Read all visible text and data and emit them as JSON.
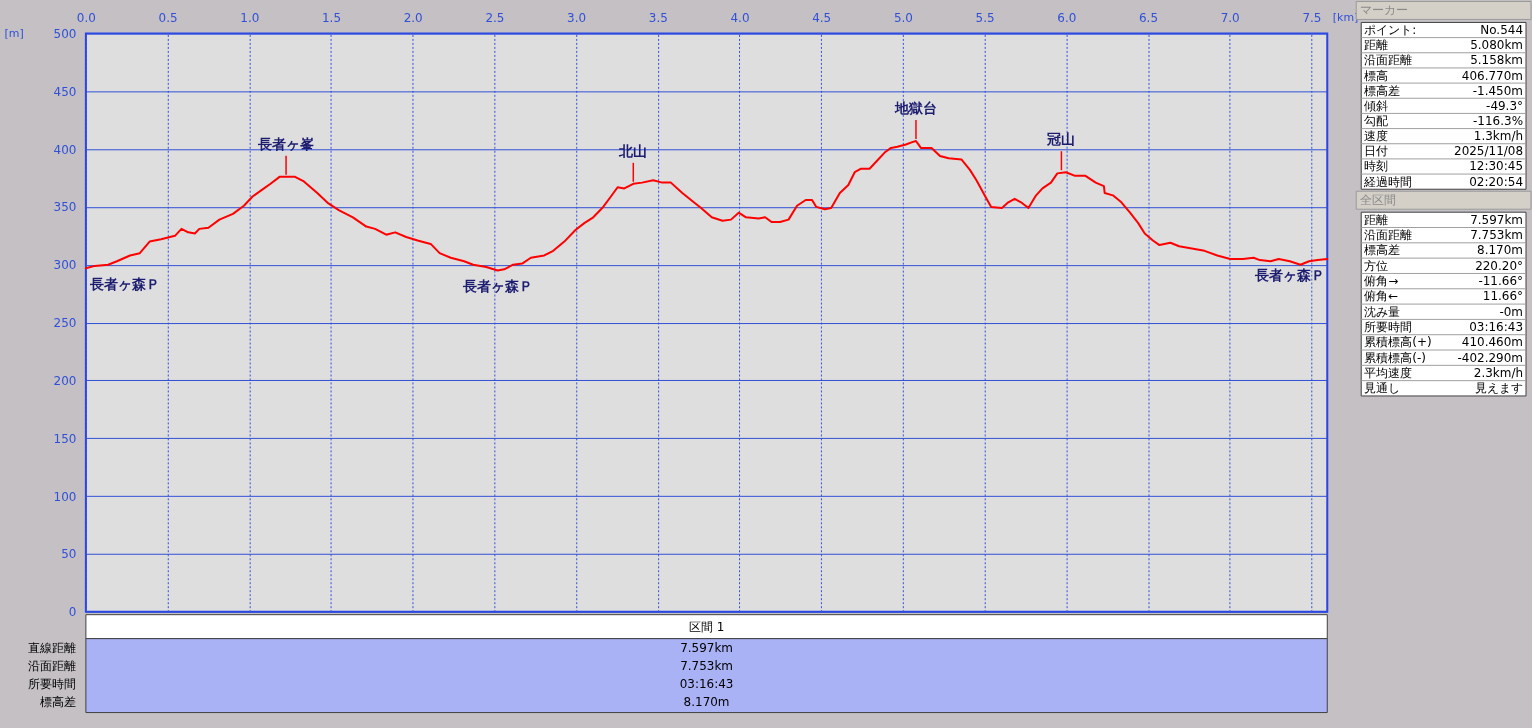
{
  "chart_data": [
    {
      "type": "line",
      "xlabel": "[km]",
      "ylabel": "[m]",
      "color": "#ff0000",
      "x": [
        0,
        0.054,
        0.136,
        0.19,
        0.27,
        0.33,
        0.39,
        0.46,
        0.545,
        0.585,
        0.626,
        0.667,
        0.694,
        0.75,
        0.817,
        0.9,
        0.967,
        1.02,
        1.09,
        1.13,
        1.185,
        1.225,
        1.28,
        1.334,
        1.416,
        1.484,
        1.55,
        1.634,
        1.716,
        1.77,
        1.838,
        1.893,
        1.96,
        2.03,
        2.11,
        2.165,
        2.233,
        2.315,
        2.37,
        2.45,
        2.52,
        2.56,
        2.614,
        2.67,
        2.723,
        2.805,
        2.86,
        2.928,
        2.996,
        3.05,
        3.105,
        3.16,
        3.213,
        3.254,
        3.295,
        3.35,
        3.404,
        3.472,
        3.527,
        3.58,
        3.65,
        3.73,
        3.765,
        3.83,
        3.896,
        3.948,
        3.995,
        4.04,
        4.117,
        4.157,
        4.196,
        4.248,
        4.3,
        4.352,
        4.405,
        4.444,
        4.47,
        4.522,
        4.561,
        4.614,
        4.666,
        4.705,
        4.744,
        4.796,
        4.836,
        4.888,
        4.927,
        4.966,
        5.018,
        5.057,
        5.08,
        5.11,
        5.175,
        5.227,
        5.28,
        5.358,
        5.41,
        5.45,
        5.5,
        5.54,
        5.606,
        5.645,
        5.684,
        5.723,
        5.768,
        5.815,
        5.854,
        5.906,
        5.945,
        5.997,
        6.05,
        6.115,
        6.18,
        6.23,
        6.235,
        6.285,
        6.337,
        6.39,
        6.44,
        6.48,
        6.53,
        6.57,
        6.637,
        6.69,
        6.768,
        6.846,
        6.924,
        7.003,
        7.08,
        7.146,
        7.185,
        7.25,
        7.3,
        7.368,
        7.433,
        7.486,
        7.538,
        7.597
      ],
      "values": [
        297,
        299,
        300,
        303,
        308,
        310,
        320,
        322,
        325,
        331,
        328,
        327,
        331,
        332,
        339,
        344,
        351,
        359,
        366,
        370,
        376,
        376,
        376,
        372,
        362,
        353,
        347,
        341,
        333,
        331,
        326,
        328,
        324,
        321,
        318,
        310,
        306,
        303,
        300,
        298,
        295,
        296,
        300,
        301,
        306,
        308,
        312,
        320,
        330,
        336,
        341,
        349,
        359,
        367,
        366,
        370,
        371,
        373,
        371,
        371,
        362,
        353,
        349,
        341,
        338,
        339,
        345,
        341,
        340,
        341,
        337,
        337,
        339,
        351,
        356,
        356,
        350,
        348,
        349,
        362,
        369,
        380,
        383,
        383,
        389,
        397,
        401,
        402,
        404,
        406,
        407,
        401,
        401,
        394,
        392,
        391,
        382,
        373,
        360,
        350,
        349,
        354,
        357,
        354,
        349,
        360,
        366,
        371,
        379,
        380,
        377,
        377,
        371,
        368,
        362,
        360,
        354,
        345,
        336,
        327,
        321,
        317,
        319,
        316,
        314,
        312,
        308,
        305,
        305,
        306,
        304,
        303,
        305,
        303,
        300,
        303,
        304,
        305
      ],
      "xlim": [
        0,
        7.597
      ],
      "ylim": [
        0,
        500
      ],
      "xticks": [
        {
          "value": 0,
          "label": "0.0"
        },
        0.5,
        {
          "value": 1,
          "label": "1.0"
        },
        1.5,
        {
          "value": 2,
          "label": "2.0"
        },
        2.5,
        {
          "value": 3,
          "label": "3.0"
        },
        3.5,
        {
          "value": 4,
          "label": "4.0"
        },
        4.5,
        {
          "value": 5,
          "label": "5.0"
        },
        5.5,
        {
          "value": 6,
          "label": "6.0"
        },
        6.5,
        {
          "value": 7,
          "label": "7.0"
        },
        7.5
      ],
      "yticks": [
        0,
        50,
        100,
        150,
        200,
        250,
        300,
        350,
        400,
        450,
        500
      ],
      "grid": true,
      "annotations": [
        {
          "text": "長者ヶ森Ｐ",
          "x": 0,
          "y": 297
        },
        {
          "text": "長者ヶ峯",
          "x": 1.225,
          "y": 376
        },
        {
          "text": "長者ヶ森Ｐ",
          "x": 2.52,
          "y": 295
        },
        {
          "text": "北山",
          "x": 3.35,
          "y": 370
        },
        {
          "text": "地獄台",
          "x": 5.08,
          "y": 407
        },
        {
          "text": "冠山",
          "x": 5.97,
          "y": 380
        },
        {
          "text": "長者ヶ森Ｐ",
          "x": 7.597,
          "y": 305
        }
      ]
    },
    {
      "type": "other",
      "title": "マーカー",
      "annotations": [
        "ポイント:",
        "No.544",
        "距離",
        "5.080km",
        "沿面距離",
        "5.158km",
        "標高",
        "406.770m",
        "標高差",
        "-1.450m",
        "傾斜",
        "-49.3°",
        "勾配",
        "-116.3%",
        "速度",
        "1.3km/h",
        "日付",
        "2025/11/08",
        "時刻",
        "12:30:45",
        "経過時間",
        "02:20:54"
      ]
    },
    {
      "type": "other",
      "title": "全区間",
      "annotations": [
        "距離",
        "7.597km",
        "沿面距離",
        "7.753km",
        "標高差",
        "8.170m",
        "方位",
        "220.20°",
        "俯角→",
        "-11.66°",
        "俯角←",
        "11.66°",
        "沈み量",
        "-0m",
        "所要時間",
        "03:16:43",
        "累積標高(+)",
        "410.460m",
        "累積標高(-)",
        "-402.290m",
        "平均速度",
        "2.3km/h",
        "見通し",
        "見えます"
      ]
    },
    {
      "type": "other",
      "title": "区間 1",
      "annotations": [
        "直線距離",
        "7.597km",
        "沿面距離",
        "7.753km",
        "所要時間",
        "03:16:43",
        "標高差",
        "8.170m"
      ]
    }
  ]
}
